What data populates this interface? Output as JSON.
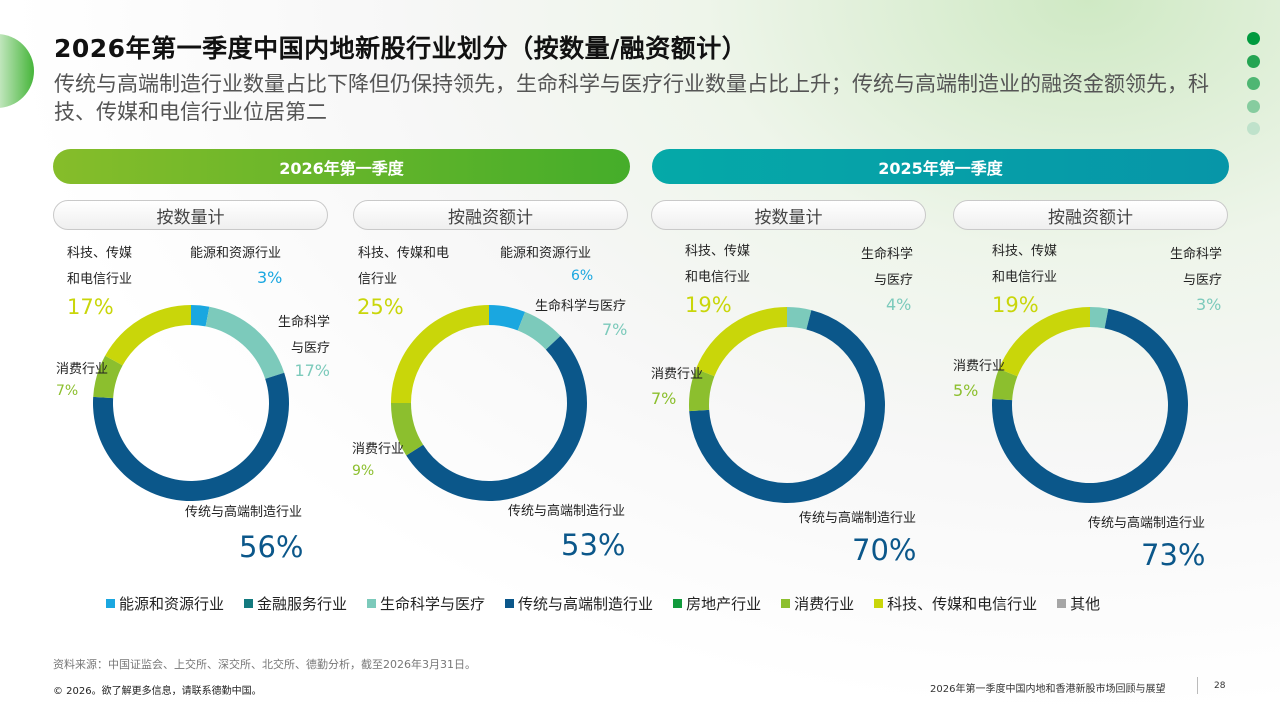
{
  "title": "2026年第一季度中国内地新股行业划分（按数量/融资额计）",
  "subtitle": "传统与高端制造行业数量占比下降但仍保持领先，生命科学与医疗行业数量占比上升；传统与高端制造业的融资金额领先，科技、传媒和电信行业位居第二",
  "periods": [
    {
      "label": "2026年第一季度",
      "color": "#5cb42a"
    },
    {
      "label": "2025年第一季度",
      "color": "#03a0a8"
    }
  ],
  "sub_tabs": [
    "按数量计",
    "按融资额计",
    "按数量计",
    "按融资额计"
  ],
  "colors": {
    "energy": "#1aa7e0",
    "finance": "#137a7f",
    "life": "#7ccabb",
    "manufacturing": "#0b578a",
    "realestate": "#109a3c",
    "consumer": "#8cbf2e",
    "tech": "#c9d60a",
    "other": "#a6a6a6"
  },
  "chart_data": [
    {
      "type": "pie",
      "title": "2026年第一季度 按数量计",
      "slices": [
        {
          "key": "energy",
          "label": "能源和资源行业",
          "value": 3,
          "value_label": "3%"
        },
        {
          "key": "life",
          "label": "生命科学与医疗",
          "label_lines": [
            "生命科学",
            "与医疗"
          ],
          "value": 17,
          "value_label": "17%"
        },
        {
          "key": "manufacturing",
          "label": "传统与高端制造行业",
          "value": 56,
          "value_label": "56%"
        },
        {
          "key": "consumer",
          "label": "消费行业",
          "value": 7,
          "value_label": "7%"
        },
        {
          "key": "tech",
          "label": "科技、传媒和电信行业",
          "label_lines": [
            "科技、传媒",
            "和电信行业"
          ],
          "value": 17,
          "value_label": "17%"
        }
      ]
    },
    {
      "type": "pie",
      "title": "2026年第一季度 按融资额计",
      "slices": [
        {
          "key": "energy",
          "label": "能源和资源行业",
          "value": 6,
          "value_label": "6%"
        },
        {
          "key": "life",
          "label": "生命科学与医疗",
          "value": 7,
          "value_label": "7%"
        },
        {
          "key": "manufacturing",
          "label": "传统与高端制造行业",
          "value": 53,
          "value_label": "53%"
        },
        {
          "key": "consumer",
          "label": "消费行业",
          "value": 9,
          "value_label": "9%"
        },
        {
          "key": "tech",
          "label": "科技、传媒和电信行业",
          "label_lines": [
            "科技、传媒和电",
            "信行业"
          ],
          "value": 25,
          "value_label": "25%"
        }
      ]
    },
    {
      "type": "pie",
      "title": "2025年第一季度 按数量计",
      "slices": [
        {
          "key": "life",
          "label": "生命科学与医疗",
          "label_lines": [
            "生命科学",
            "与医疗"
          ],
          "value": 4,
          "value_label": "4%"
        },
        {
          "key": "manufacturing",
          "label": "传统与高端制造行业",
          "value": 70,
          "value_label": "70%"
        },
        {
          "key": "consumer",
          "label": "消费行业",
          "value": 7,
          "value_label": "7%"
        },
        {
          "key": "tech",
          "label": "科技、传媒和电信行业",
          "label_lines": [
            "科技、传媒",
            "和电信行业"
          ],
          "value": 19,
          "value_label": "19%"
        }
      ]
    },
    {
      "type": "pie",
      "title": "2025年第一季度 按融资额计",
      "slices": [
        {
          "key": "life",
          "label": "生命科学与医疗",
          "label_lines": [
            "生命科学",
            "与医疗"
          ],
          "value": 3,
          "value_label": "3%"
        },
        {
          "key": "manufacturing",
          "label": "传统与高端制造行业",
          "value": 73,
          "value_label": "73%"
        },
        {
          "key": "consumer",
          "label": "消费行业",
          "value": 5,
          "value_label": "5%"
        },
        {
          "key": "tech",
          "label": "科技、传媒和电信行业",
          "label_lines": [
            "科技、传媒",
            "和电信行业"
          ],
          "value": 19,
          "value_label": "19%"
        }
      ]
    }
  ],
  "legend": [
    {
      "key": "energy",
      "label": "能源和资源行业"
    },
    {
      "key": "finance",
      "label": "金融服务行业"
    },
    {
      "key": "life",
      "label": "生命科学与医疗"
    },
    {
      "key": "manufacturing",
      "label": "传统与高端制造行业"
    },
    {
      "key": "realestate",
      "label": "房地产行业"
    },
    {
      "key": "consumer",
      "label": "消费行业"
    },
    {
      "key": "tech",
      "label": "科技、传媒和电信行业"
    },
    {
      "key": "other",
      "label": "其他"
    }
  ],
  "footer": {
    "source": "资料来源：中国证监会、上交所、深交所、北交所、德勤分析，截至2026年3月31日。",
    "copyright": "© 2026。欲了解更多信息，请联系德勤中国。",
    "report_title": "2026年第一季度中国内地和香港新股市场回顾与展望",
    "page": "28"
  }
}
